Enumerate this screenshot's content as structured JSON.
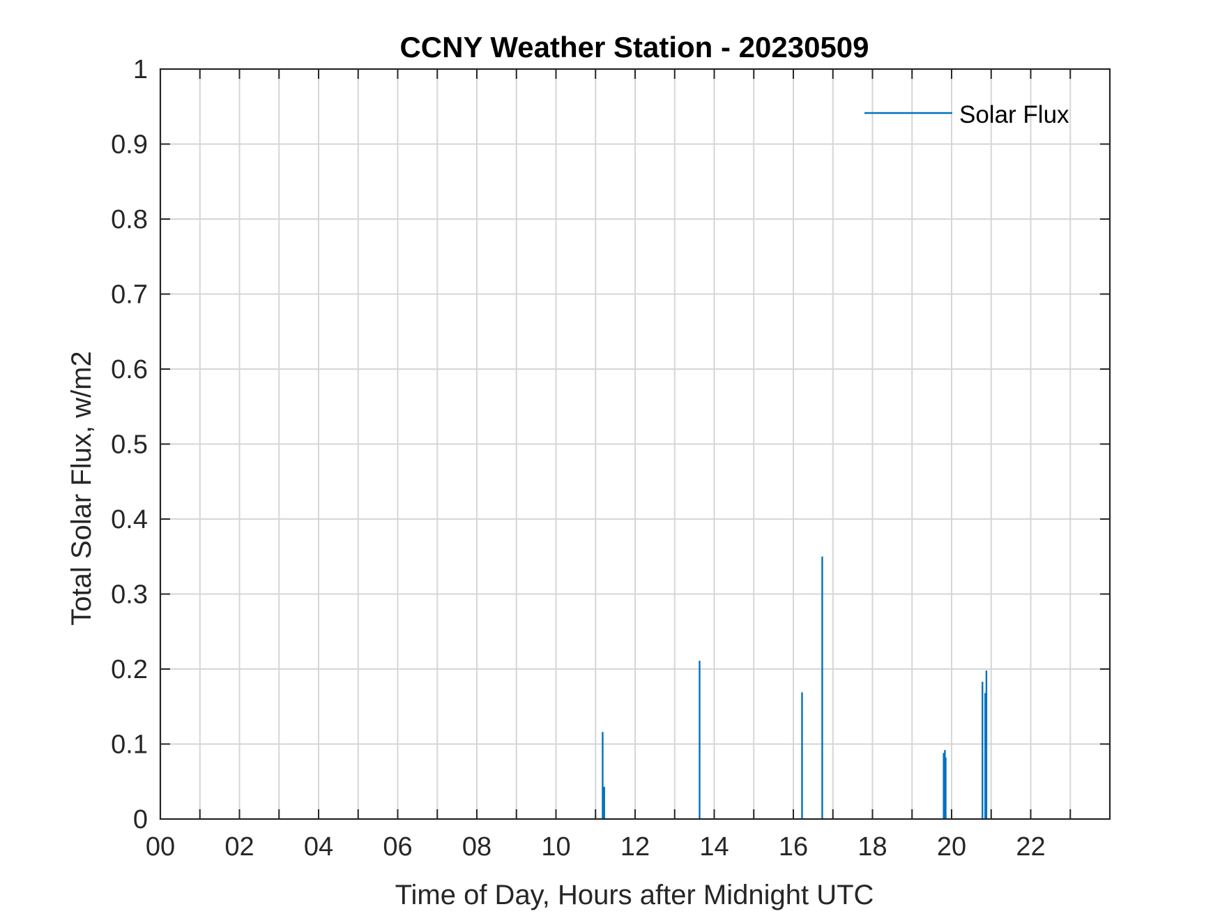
{
  "chart_data": {
    "type": "line",
    "title": "CCNY Weather Station - 20230509",
    "xlabel": "Time of Day, Hours after Midnight UTC",
    "ylabel": "Total Solar Flux, w/m2",
    "xlim": [
      0,
      24
    ],
    "ylim": [
      0,
      1
    ],
    "grid": true,
    "x_tick_labels": [
      "00",
      "02",
      "04",
      "06",
      "08",
      "10",
      "12",
      "14",
      "16",
      "18",
      "20",
      "22"
    ],
    "x_tick_values": [
      0,
      2,
      4,
      6,
      8,
      10,
      12,
      14,
      16,
      18,
      20,
      22
    ],
    "x_grid_values": [
      1,
      2,
      3,
      4,
      5,
      6,
      7,
      8,
      9,
      10,
      11,
      12,
      13,
      14,
      15,
      16,
      17,
      18,
      19,
      20,
      21,
      22,
      23
    ],
    "y_tick_labels": [
      "0",
      "0.1",
      "0.2",
      "0.3",
      "0.4",
      "0.5",
      "0.6",
      "0.7",
      "0.8",
      "0.9",
      "1"
    ],
    "y_tick_values": [
      0,
      0.1,
      0.2,
      0.3,
      0.4,
      0.5,
      0.6,
      0.7,
      0.8,
      0.9,
      1
    ],
    "legend_position": "top-right",
    "series": [
      {
        "name": "Solar Flux",
        "color": "#0072BD",
        "spikes": [
          {
            "x": 11.18,
            "y": 0.116
          },
          {
            "x": 11.22,
            "y": 0.043
          },
          {
            "x": 13.63,
            "y": 0.211
          },
          {
            "x": 16.22,
            "y": 0.169
          },
          {
            "x": 16.73,
            "y": 0.35
          },
          {
            "x": 19.8,
            "y": 0.088
          },
          {
            "x": 19.83,
            "y": 0.092
          },
          {
            "x": 19.85,
            "y": 0.082
          },
          {
            "x": 20.78,
            "y": 0.183
          },
          {
            "x": 20.85,
            "y": 0.168
          },
          {
            "x": 20.88,
            "y": 0.198
          }
        ]
      }
    ]
  }
}
